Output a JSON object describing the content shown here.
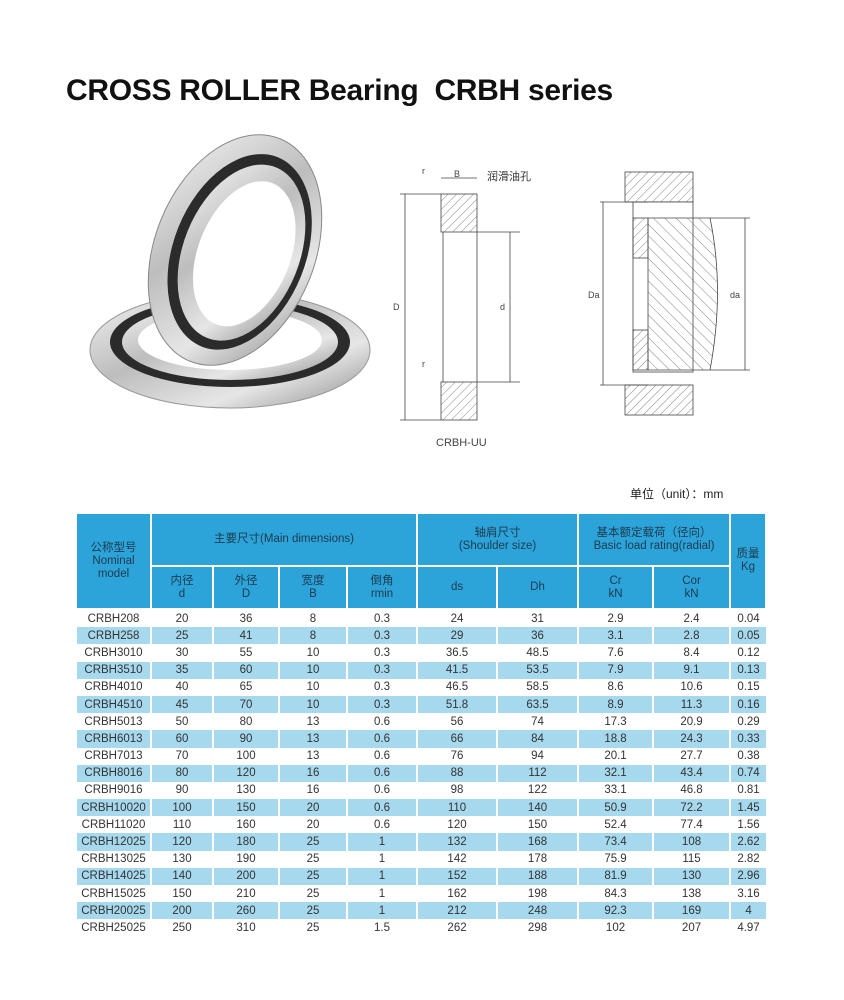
{
  "title": "CROSS ROLLER Bearing  CRBH series",
  "diagram": {
    "label_model": "CRBH-UU",
    "label_oil_hole": "润滑油孔",
    "dim_B": "B",
    "dim_D": "D",
    "dim_d": "d",
    "dim_r": "r",
    "dim_Da": "Da",
    "dim_da": "da"
  },
  "unit_label": "单位（unit）：mm",
  "colors": {
    "header": "#2ca3d9",
    "stripe": "#a6d8ee"
  },
  "table": {
    "headers": {
      "model": [
        "公称型号",
        "Nominal",
        "model"
      ],
      "main": "主要尺寸(Main dimensions)",
      "shoulder": [
        "轴肩尺寸",
        "(Shoulder size)"
      ],
      "load": [
        "基本额定载荷（径向）",
        "Basic load rating(radial)"
      ],
      "mass": [
        "质量",
        "Kg"
      ],
      "d": [
        "内径",
        "d"
      ],
      "D": [
        "外径",
        "D"
      ],
      "B": [
        "宽度",
        "B"
      ],
      "rmin": [
        "倒角",
        "rmin"
      ],
      "ds": "ds",
      "Dh": "Dh",
      "Cr": [
        "Cr",
        "kN"
      ],
      "Cor": [
        "Cor",
        "kN"
      ]
    },
    "rows": [
      [
        "CRBH208",
        "20",
        "36",
        "8",
        "0.3",
        "24",
        "31",
        "2.9",
        "2.4",
        "0.04"
      ],
      [
        "CRBH258",
        "25",
        "41",
        "8",
        "0.3",
        "29",
        "36",
        "3.1",
        "2.8",
        "0.05"
      ],
      [
        "CRBH3010",
        "30",
        "55",
        "10",
        "0.3",
        "36.5",
        "48.5",
        "7.6",
        "8.4",
        "0.12"
      ],
      [
        "CRBH3510",
        "35",
        "60",
        "10",
        "0.3",
        "41.5",
        "53.5",
        "7.9",
        "9.1",
        "0.13"
      ],
      [
        "CRBH4010",
        "40",
        "65",
        "10",
        "0.3",
        "46.5",
        "58.5",
        "8.6",
        "10.6",
        "0.15"
      ],
      [
        "CRBH4510",
        "45",
        "70",
        "10",
        "0.3",
        "51.8",
        "63.5",
        "8.9",
        "11.3",
        "0.16"
      ],
      [
        "CRBH5013",
        "50",
        "80",
        "13",
        "0.6",
        "56",
        "74",
        "17.3",
        "20.9",
        "0.29"
      ],
      [
        "CRBH6013",
        "60",
        "90",
        "13",
        "0.6",
        "66",
        "84",
        "18.8",
        "24.3",
        "0.33"
      ],
      [
        "CRBH7013",
        "70",
        "100",
        "13",
        "0.6",
        "76",
        "94",
        "20.1",
        "27.7",
        "0.38"
      ],
      [
        "CRBH8016",
        "80",
        "120",
        "16",
        "0.6",
        "88",
        "112",
        "32.1",
        "43.4",
        "0.74"
      ],
      [
        "CRBH9016",
        "90",
        "130",
        "16",
        "0.6",
        "98",
        "122",
        "33.1",
        "46.8",
        "0.81"
      ],
      [
        "CRBH10020",
        "100",
        "150",
        "20",
        "0.6",
        "110",
        "140",
        "50.9",
        "72.2",
        "1.45"
      ],
      [
        "CRBH11020",
        "110",
        "160",
        "20",
        "0.6",
        "120",
        "150",
        "52.4",
        "77.4",
        "1.56"
      ],
      [
        "CRBH12025",
        "120",
        "180",
        "25",
        "1",
        "132",
        "168",
        "73.4",
        "108",
        "2.62"
      ],
      [
        "CRBH13025",
        "130",
        "190",
        "25",
        "1",
        "142",
        "178",
        "75.9",
        "115",
        "2.82"
      ],
      [
        "CRBH14025",
        "140",
        "200",
        "25",
        "1",
        "152",
        "188",
        "81.9",
        "130",
        "2.96"
      ],
      [
        "CRBH15025",
        "150",
        "210",
        "25",
        "1",
        "162",
        "198",
        "84.3",
        "138",
        "3.16"
      ],
      [
        "CRBH20025",
        "200",
        "260",
        "25",
        "1",
        "212",
        "248",
        "92.3",
        "169",
        "4"
      ],
      [
        "CRBH25025",
        "250",
        "310",
        "25",
        "1.5",
        "262",
        "298",
        "102",
        "207",
        "4.97"
      ]
    ]
  }
}
